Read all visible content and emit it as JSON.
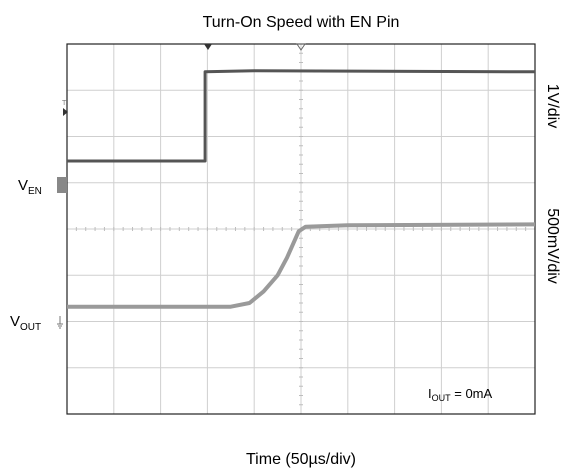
{
  "chart_data": {
    "type": "line",
    "title": "Turn-On Speed with EN Pin",
    "xlabel": "Time (50µs/div)",
    "x_divisions": 10,
    "y_divisions": 8,
    "x_unit": "µs",
    "x_per_div": 50,
    "xlim": [
      0,
      500
    ],
    "ylim_divisions": [
      -4,
      4
    ],
    "grid": true,
    "annotation": {
      "main": "I",
      "sub": "OUT",
      "rest": " = 0mA"
    },
    "series": [
      {
        "name": "EN",
        "name_main": "V",
        "name_sub": "EN",
        "scale_label": "1V/div",
        "color": "#555555",
        "points_div": [
          [
            0,
            1.47
          ],
          [
            2.95,
            1.47
          ],
          [
            2.95,
            3.4
          ],
          [
            4.0,
            3.42
          ],
          [
            10,
            3.4
          ]
        ]
      },
      {
        "name": "OUT",
        "name_main": "V",
        "name_sub": "OUT",
        "scale_label": "500mV/div",
        "color": "#9a9a9a",
        "points_div": [
          [
            0,
            -1.68
          ],
          [
            3.5,
            -1.68
          ],
          [
            3.9,
            -1.6
          ],
          [
            4.2,
            -1.35
          ],
          [
            4.5,
            -1.0
          ],
          [
            4.7,
            -0.62
          ],
          [
            4.95,
            -0.05
          ],
          [
            5.1,
            0.05
          ],
          [
            6.0,
            0.08
          ],
          [
            10,
            0.1
          ]
        ]
      }
    ]
  }
}
